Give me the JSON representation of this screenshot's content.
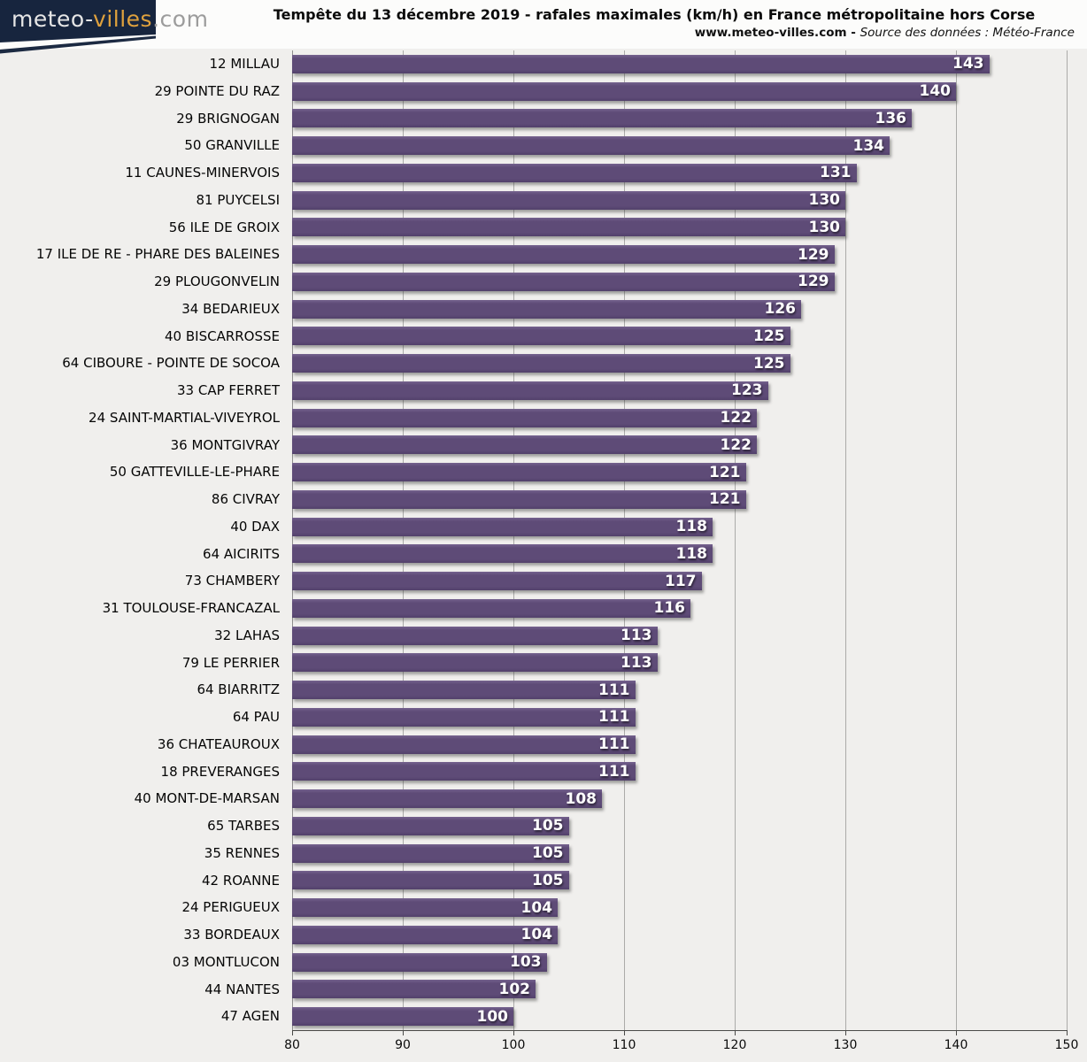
{
  "logo": {
    "part1": "meteo-",
    "part2": "villes",
    "part3": ".com"
  },
  "header": {
    "title": "Tempête du 13 décembre 2019 - rafales maximales (km/h) en France métropolitaine hors Corse",
    "subtitle_site": "www.meteo-villes.com",
    "subtitle_sep": " - ",
    "subtitle_source": "Source des données : Météo-France"
  },
  "colors": {
    "bar": "#5e4b77",
    "logo_background": "#17253e",
    "logo_meteo": "#e6e6e6",
    "logo_villes": "#dfa13d",
    "logo_com": "#9c9c9c",
    "page_background": "#f0efed",
    "header_background": "#fcfcfb",
    "gridline": "#ababa9",
    "value_text": "#ffffff"
  },
  "chart_data": {
    "type": "bar",
    "orientation": "horizontal",
    "title": "Tempête du 13 décembre 2019 - rafales maximales (km/h) en France métropolitaine hors Corse",
    "xlabel": "",
    "ylabel": "",
    "xlim": [
      80,
      150
    ],
    "xticks": [
      80,
      90,
      100,
      110,
      120,
      130,
      140,
      150
    ],
    "grid": true,
    "value_labels": "inside-end",
    "categories": [
      "12 MILLAU",
      "29 POINTE DU RAZ",
      "29 BRIGNOGAN",
      "50 GRANVILLE",
      "11 CAUNES-MINERVOIS",
      "81 PUYCELSI",
      "56 ILE DE GROIX",
      "17 ILE DE RE - PHARE DES BALEINES",
      "29 PLOUGONVELIN",
      "34 BEDARIEUX",
      "40 BISCARROSSE",
      "64 CIBOURE - POINTE DE SOCOA",
      "33 CAP FERRET",
      "24 SAINT-MARTIAL-VIVEYROL",
      "36 MONTGIVRAY",
      "50 GATTEVILLE-LE-PHARE",
      "86 CIVRAY",
      "40 DAX",
      "64 AICIRITS",
      "73 CHAMBERY",
      "31 TOULOUSE-FRANCAZAL",
      "32 LAHAS",
      "79 LE PERRIER",
      "64 BIARRITZ",
      "64 PAU",
      "36 CHATEAUROUX",
      "18 PREVERANGES",
      "40 MONT-DE-MARSAN",
      "65 TARBES",
      "35 RENNES",
      "42 ROANNE",
      "24 PERIGUEUX",
      "33 BORDEAUX",
      "03 MONTLUCON",
      "44 NANTES",
      "47 AGEN"
    ],
    "values": [
      143,
      140,
      136,
      134,
      131,
      130,
      130,
      129,
      129,
      126,
      125,
      125,
      123,
      122,
      122,
      121,
      121,
      118,
      118,
      117,
      116,
      113,
      113,
      111,
      111,
      111,
      111,
      108,
      105,
      105,
      105,
      104,
      104,
      103,
      102,
      100
    ]
  }
}
